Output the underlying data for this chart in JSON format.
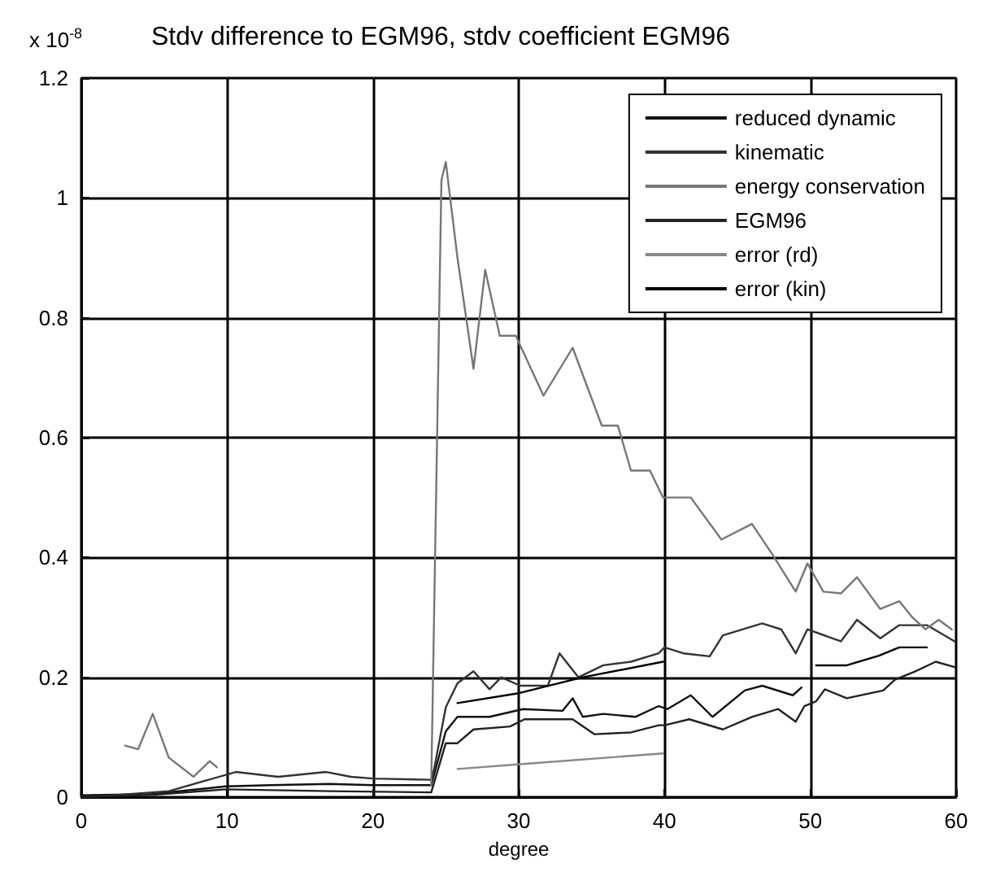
{
  "chart_data": {
    "type": "line",
    "title": "Stdv difference to EGM96, stdv coefficient EGM96",
    "xlabel": "degree",
    "annotations": [
      "x 10$^{-8}$"
    ],
    "xlim": [
      0,
      60
    ],
    "xticks": [
      0,
      10,
      20,
      30,
      40,
      50,
      60
    ],
    "ylim": [
      0,
      1.2
    ],
    "yticks": [
      0,
      0.2,
      0.4,
      0.6,
      0.8,
      1,
      1.2
    ],
    "grid": true,
    "legend": "top right",
    "marker": "none",
    "line_style": "solid",
    "series": [
      {
        "name": "reduced dynamic",
        "color": "#111111",
        "x": [
          0,
          4.8,
          9.9,
          13,
          17,
          20,
          24,
          25,
          25.8,
          28,
          30.3,
          33,
          33.7,
          34.4,
          35.8,
          38,
          39.6,
          40.2,
          41.8,
          43.3,
          45.5,
          46.7,
          48.8,
          49.4
        ],
        "values": [
          0.003,
          0.005,
          0.018,
          0.02,
          0.022,
          0.02,
          0.02,
          0.11,
          0.134,
          0.134,
          0.147,
          0.144,
          0.165,
          0.134,
          0.139,
          0.134,
          0.152,
          0.147,
          0.17,
          0.134,
          0.178,
          0.186,
          0.17,
          0.183
        ]
      },
      {
        "name": "kinematic",
        "color": "#333333",
        "x": [
          1,
          6,
          10.6,
          13.5,
          16.8,
          18.5,
          20,
          24,
          24.2,
          25,
          25.8,
          26.9,
          28,
          28.8,
          30.1,
          32,
          32.8,
          34.1,
          35.8,
          37.7,
          39.6,
          40,
          41.3,
          43.1,
          44,
          46.7,
          48,
          49,
          49.8,
          52.1,
          53.2,
          54.8,
          56.1,
          58,
          59.9
        ],
        "values": [
          0.001,
          0.01,
          0.042,
          0.034,
          0.042,
          0.034,
          0.031,
          0.029,
          0.047,
          0.15,
          0.19,
          0.21,
          0.18,
          0.2,
          0.186,
          0.186,
          0.24,
          0.2,
          0.22,
          0.226,
          0.24,
          0.25,
          0.24,
          0.235,
          0.27,
          0.29,
          0.28,
          0.24,
          0.28,
          0.26,
          0.296,
          0.265,
          0.287,
          0.287,
          0.26
        ]
      },
      {
        "name": "energy conservation",
        "color": "#777777",
        "x": [
          3,
          3.9,
          4.9,
          6,
          7.7,
          8.8,
          9.3,
          10,
          24,
          24.7,
          25,
          25.8,
          26.9,
          27.7,
          28.7,
          29.8,
          31.7,
          33.7,
          35.7,
          36.8,
          37.7,
          39,
          39.9,
          41.8,
          43.9,
          46,
          47.4,
          49,
          49.8,
          50.9,
          52.1,
          53.2,
          54.8,
          56.1,
          57,
          57.9,
          58.8,
          59.7
        ],
        "values": [
          0.086,
          0.08,
          0.139,
          0.066,
          0.034,
          0.06,
          0.05,
          null,
          0.02,
          1.03,
          1.06,
          0.9,
          0.715,
          0.88,
          0.77,
          0.77,
          0.67,
          0.75,
          0.62,
          0.62,
          0.545,
          0.545,
          0.5,
          0.5,
          0.43,
          0.456,
          0.405,
          0.343,
          0.39,
          0.343,
          0.34,
          0.367,
          0.314,
          0.327,
          0.3,
          0.28,
          0.296,
          0.28
        ]
      },
      {
        "name": "EGM96",
        "color": "#222222",
        "x": [
          0,
          5,
          9.9,
          17,
          24,
          25,
          25.8,
          26.9,
          29.4,
          30.4,
          33.7,
          35.2,
          37.7,
          39.6,
          40,
          41.7,
          44,
          46,
          47.8,
          49,
          49.6,
          50.4,
          51,
          52.5,
          55,
          55.8,
          57.2,
          58.6,
          59.9
        ],
        "values": [
          0,
          0.004,
          0.013,
          0.01,
          0.008,
          0.09,
          0.09,
          0.113,
          0.118,
          0.13,
          0.13,
          0.105,
          0.108,
          0.12,
          0.12,
          0.13,
          0.113,
          0.134,
          0.147,
          0.126,
          0.152,
          0.16,
          0.18,
          0.165,
          0.178,
          0.196,
          0.21,
          0.226,
          0.217
        ]
      },
      {
        "name": "error (rd)",
        "color": "#888888",
        "x": [
          25.8,
          30.1,
          39.9
        ],
        "values": [
          0.047,
          0.055,
          0.073
        ]
      },
      {
        "name": "error (kin)",
        "color": "#000000",
        "x": [
          25.8,
          29.9,
          34.4,
          39.9,
          45,
          50.4,
          52.5,
          54.7,
          56.1,
          58
        ],
        "values": [
          0.157,
          0.173,
          0.2,
          0.226,
          null,
          0.22,
          0.22,
          0.236,
          0.25,
          0.25
        ]
      }
    ]
  }
}
